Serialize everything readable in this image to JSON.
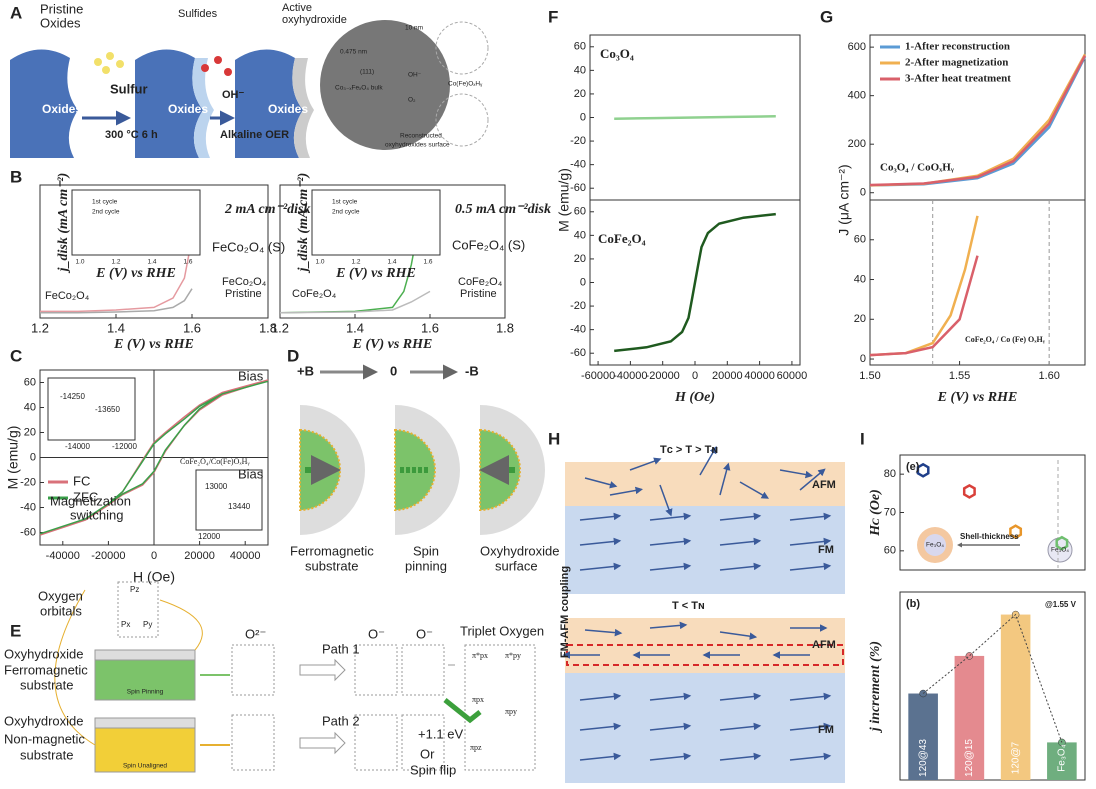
{
  "chart_data": [
    {
      "type": "line",
      "xlim": [
        1.2,
        1.8
      ],
      "xticks": [
        1.2,
        1.4,
        1.6,
        1.8
      ],
      "ylim": [
        0,
        10
      ],
      "x_label": "E (V) vs RHE",
      "series": [
        {
          "color": "#e59aa0",
          "x": [
            1.2,
            1.3,
            1.4,
            1.5,
            1.55,
            1.58,
            1.6
          ],
          "values": [
            0.5,
            0.5,
            0.6,
            0.8,
            1.5,
            3,
            6
          ]
        },
        {
          "color": "#aaaaaa",
          "x": [
            1.2,
            1.3,
            1.4,
            1.5,
            1.55,
            1.58,
            1.6
          ],
          "values": [
            0.4,
            0.4,
            0.45,
            0.55,
            0.8,
            1.3,
            2.2
          ]
        }
      ]
    },
    {
      "type": "line",
      "xlim": [
        1.2,
        1.8
      ],
      "xticks": [
        1.2,
        1.4,
        1.6,
        1.8
      ],
      "ylim": [
        0,
        10
      ],
      "x_label": "E (V) vs RHE",
      "series": [
        {
          "color": "#4caf50",
          "x": [
            1.2,
            1.4,
            1.5,
            1.53,
            1.55,
            1.57
          ],
          "values": [
            0.4,
            0.5,
            0.8,
            2,
            4,
            7
          ]
        },
        {
          "color": "#bbbbbb",
          "x": [
            1.2,
            1.4,
            1.5,
            1.55,
            1.6
          ],
          "values": [
            0.4,
            0.45,
            0.6,
            1.2,
            2
          ]
        }
      ]
    },
    {
      "type": "line",
      "xlim": [
        -50000,
        50000
      ],
      "xticks": [
        -40000,
        -20000,
        0,
        20000,
        40000
      ],
      "ylim": [
        -70,
        70
      ],
      "yticks": [
        -60,
        -40,
        -20,
        0,
        20,
        40,
        60
      ],
      "x_label": "H (Oe)",
      "y_label": "M (emu/g)",
      "zero_axes": true,
      "series": [
        {
          "name": "FC",
          "color": "#d9717a",
          "x": [
            -50000,
            -30000,
            -20000,
            -14000,
            -5000,
            0,
            5000,
            13000,
            20000,
            30000,
            50000,
            30000,
            20000,
            13000,
            5000,
            0,
            -5000,
            -14000,
            -20000,
            -30000,
            -50000
          ],
          "values": [
            -62,
            -50,
            -38,
            -30,
            -22,
            -12,
            5,
            25,
            38,
            50,
            62,
            52,
            42,
            32,
            20,
            12,
            -2,
            -28,
            -38,
            -50,
            -62
          ]
        },
        {
          "name": "ZFC",
          "color": "#3aa04a",
          "x": [
            -50000,
            -30000,
            -20000,
            -13650,
            -5000,
            0,
            5000,
            13440,
            20000,
            30000,
            50000,
            30000,
            20000,
            13440,
            5000,
            0,
            -5000,
            -13650,
            -20000,
            -30000,
            -50000
          ],
          "values": [
            -61,
            -49,
            -37,
            -29,
            -21,
            -11,
            6,
            26,
            39,
            51,
            61,
            51,
            41,
            31,
            19,
            11,
            -3,
            -27,
            -37,
            -49,
            -61
          ]
        }
      ]
    },
    {
      "type": "line",
      "xlim": [
        -65000,
        65000
      ],
      "ylim": [
        -70,
        70
      ],
      "yticks": [
        -60,
        -40,
        -20,
        0,
        20,
        40,
        60
      ],
      "series": [
        {
          "color": "#8fd18f",
          "x": [
            -50000,
            -25000,
            0,
            25000,
            50000
          ],
          "values": [
            -1,
            -0.5,
            0,
            0.5,
            1
          ]
        }
      ]
    },
    {
      "type": "line",
      "xlim": [
        -65000,
        65000
      ],
      "xticks": [
        -60000,
        -40000,
        -20000,
        0,
        20000,
        40000,
        60000
      ],
      "ylim": [
        -70,
        70
      ],
      "yticks": [
        -60,
        -40,
        -20,
        0,
        20,
        40,
        60
      ],
      "x_label": "H (Oe)",
      "series": [
        {
          "color": "#1f5a1f",
          "x": [
            -50000,
            -30000,
            -15000,
            -8000,
            -4000,
            -2000,
            0,
            2000,
            4000,
            8000,
            15000,
            30000,
            50000
          ],
          "values": [
            -58,
            -55,
            -50,
            -42,
            -30,
            -15,
            0,
            15,
            30,
            42,
            50,
            55,
            58
          ]
        }
      ]
    },
    {
      "type": "line",
      "xlim": [
        1.5,
        1.62
      ],
      "ylim": [
        -30,
        650
      ],
      "yticks": [
        0,
        200,
        400,
        600
      ],
      "legend": "upper left",
      "series": [
        {
          "name": "1-After reconstruction",
          "color": "#5b9bd5",
          "x": [
            1.5,
            1.53,
            1.56,
            1.58,
            1.6,
            1.62
          ],
          "values": [
            30,
            35,
            60,
            120,
            270,
            560
          ]
        },
        {
          "name": "2-After magnetization",
          "color": "#f0b050",
          "x": [
            1.5,
            1.53,
            1.56,
            1.58,
            1.6,
            1.62
          ],
          "values": [
            30,
            37,
            70,
            140,
            300,
            570
          ]
        },
        {
          "name": "3-After heat treatment",
          "color": "#d9606a",
          "x": [
            1.5,
            1.53,
            1.56,
            1.58,
            1.6,
            1.62
          ],
          "values": [
            32,
            38,
            65,
            130,
            285,
            565
          ]
        }
      ]
    },
    {
      "type": "line",
      "xlim": [
        1.5,
        1.62
      ],
      "xticks": [
        {
          "value": 1.5,
          "label": "1.50"
        },
        1.55,
        {
          "value": 1.6,
          "label": "1.60"
        }
      ],
      "ylim": [
        -3,
        80
      ],
      "yticks": [
        0,
        20,
        40,
        60
      ],
      "x_label": "E (V) vs RHE",
      "vlines": [
        1.535,
        1.6
      ],
      "series": [
        {
          "color": "#f0b050",
          "x": [
            1.5,
            1.52,
            1.535,
            1.545,
            1.553,
            1.56
          ],
          "values": [
            2,
            3,
            8,
            22,
            45,
            72
          ]
        },
        {
          "color": "#d9606a",
          "x": [
            1.5,
            1.52,
            1.535,
            1.55,
            1.56
          ],
          "values": [
            2,
            3,
            6,
            20,
            52
          ]
        }
      ]
    },
    {
      "type": "scatter",
      "xlim": [
        0.5,
        4.5
      ],
      "x": [
        1,
        2,
        3,
        4
      ],
      "ylim": [
        55,
        85
      ],
      "yticks": [
        60,
        70,
        80
      ],
      "y_label": "Hᴄ (Oe)",
      "values": [
        81,
        75.5,
        65,
        62
      ],
      "colors": [
        "#1f3f8a",
        "#d9403a",
        "#e8962a",
        "#6fbf6f"
      ]
    },
    {
      "type": "bar",
      "ylim": [
        0,
        50
      ],
      "y_label": "j increment (%)",
      "categories": [
        "120@43",
        "120@15",
        "120@7",
        "Fe₃O₄"
      ],
      "values": [
        23,
        33,
        44,
        10
      ],
      "colors": [
        "#5b7290",
        "#e48a8f",
        "#f3c880",
        "#6fae7f"
      ]
    }
  ],
  "figure": {
    "panel_labels": [
      "A",
      "B",
      "C",
      "D",
      "E",
      "F",
      "G",
      "H",
      "I"
    ],
    "A": {
      "pristine": "Pristine",
      "oxides_top": "Oxides",
      "oxides": [
        "Oxides",
        "Oxides",
        "Oxides"
      ],
      "sulfur": "Sulfur",
      "condition": "300 °C 6 h",
      "sulfides": "Sulfides",
      "active": "Active",
      "oxyhydroxide": "oxyhydroxide",
      "oh": "OH⁻",
      "oer": "Alkaline OER",
      "tem": [
        "10 nm",
        "0.475 nm",
        "(111)",
        "Co₃₋ₓFeₓO₄ bulk",
        "OH⁻",
        "O₂",
        "Reconstructed",
        "oxyhydroxides surface",
        "Co(Fe)OₓHᵧ"
      ]
    },
    "B": {
      "insets": [
        {
          "cycle1": "1st cycle",
          "cycle2": "2nd cycle",
          "ticks": [
            "1.0",
            "1.2",
            "1.4",
            "1.6"
          ],
          "x_label": "E (V) vs RHE",
          "y_label": "j_disk (mA cm⁻²)"
        },
        {
          "cycle1": "1st cycle",
          "cycle2": "2nd cycle",
          "ticks": [
            "1.0",
            "1.2",
            "1.4",
            "1.6"
          ],
          "x_label": "E (V) vs RHE",
          "y_label": "j_disk (mA cm⁻²)"
        }
      ],
      "scale": [
        "2 mA cm⁻²disk",
        "0.5 mA cm⁻²disk"
      ],
      "labels": [
        [
          "FeCo₂O₄ (S)",
          "FeCo₂O₄",
          "Pristine",
          "FeCo₂O₄"
        ],
        [
          "CoFe₂O₄ (S)",
          "CoFe₂O₄",
          "Pristine",
          "CoFe₂O₄"
        ]
      ]
    },
    "C": {
      "bias": [
        "Bias",
        "Bias"
      ],
      "sample": "CoFe₂O₄/Co(Fe)OₓHᵧ",
      "switching": [
        "Magnetization",
        "switching"
      ],
      "inset1": [
        "-14250",
        "-13650",
        "-14000",
        "-12000"
      ],
      "inset2": [
        "13000",
        "13440",
        "12000"
      ]
    },
    "D": {
      "fields": [
        "+B",
        "0",
        "-B"
      ],
      "substrate": [
        "Ferromagnetic",
        "substrate"
      ],
      "pinning": [
        "Spin",
        "pinning"
      ],
      "surface": [
        "Oxyhydroxide",
        "surface"
      ]
    },
    "E": {
      "orbitals": [
        "Oxygen",
        "orbitals"
      ],
      "p": [
        "Pz",
        "Px",
        "Py"
      ],
      "top": [
        "Oxyhydroxide",
        "Ferromagnetic",
        "substrate",
        "Spin Pinning"
      ],
      "bottom": [
        "Oxyhydroxide",
        "Non-magnetic",
        "substrate",
        "Spin Unaligned"
      ],
      "o2": "O²⁻",
      "paths": [
        "Path 1",
        "Path 2"
      ],
      "o": [
        "O⁻",
        "O⁻"
      ],
      "triplet": "Triplet Oxygen",
      "mo": [
        "π*px",
        "π*py",
        "πpx",
        "πpy",
        "πpz"
      ],
      "energy": "+1.1 eV",
      "or": "Or",
      "flip": "Spin flip"
    },
    "F": {
      "y_label": "M (emu/g)",
      "top": "Co₃O₄",
      "bottom": "CoFe₂O₄"
    },
    "G": {
      "y_label": "J (μA cm⁻²)",
      "top": "Co₃O₄ / CoOₓHᵧ",
      "bottom": "CoFe₂O₄ / Co (Fe) OₓHᵧ"
    },
    "H": {
      "side": "FM-AFM coupling",
      "top_title": "Tᴄ > T > Tɴ",
      "bottom_title": "T < Tɴ",
      "layers": [
        "AFM",
        "FM",
        "AFM",
        "FM"
      ]
    },
    "I": {
      "e": "(e)",
      "b": "(b)",
      "shell": "Shell-thickness",
      "core": [
        "Fe₃O₄",
        "Fe₃O₄"
      ],
      "condition": "@1.55 V"
    }
  }
}
